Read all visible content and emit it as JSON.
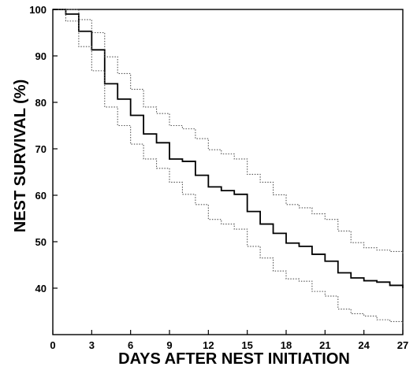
{
  "chart_data": {
    "type": "line",
    "title": "",
    "xlabel": "DAYS AFTER NEST INITIATION",
    "ylabel": "NEST SURVIVAL (%)",
    "xlim": [
      0,
      27
    ],
    "ylim": [
      30,
      100
    ],
    "x_ticks": [
      0,
      3,
      6,
      9,
      12,
      15,
      18,
      21,
      24,
      27
    ],
    "y_ticks": [
      40,
      50,
      60,
      70,
      80,
      90,
      100
    ],
    "grid": false,
    "legend": "none",
    "step": true,
    "x": [
      0,
      1,
      2,
      3,
      4,
      5,
      6,
      7,
      8,
      9,
      10,
      11,
      12,
      13,
      14,
      15,
      16,
      17,
      18,
      19,
      20,
      21,
      22,
      23,
      24,
      25,
      26,
      27
    ],
    "series": [
      {
        "style": "solid",
        "color": "#000000",
        "values": [
          100,
          99,
          95.3,
          91.3,
          84,
          80.7,
          77.2,
          73.2,
          71.3,
          67.8,
          67.3,
          64.3,
          61.8,
          61,
          60.2,
          56.5,
          53.8,
          51.8,
          49.7,
          49,
          47.3,
          45.8,
          43.3,
          42.2,
          41.6,
          41.3,
          40.6,
          40
        ]
      },
      {
        "style": "dotted",
        "color": "#555555",
        "values": [
          100,
          100,
          97.8,
          95,
          89.8,
          86.2,
          82.8,
          79,
          77.6,
          75,
          74.3,
          72.2,
          69.8,
          68.9,
          67.8,
          64.5,
          62.8,
          60.1,
          58,
          57.3,
          56,
          54.8,
          52.3,
          49.8,
          48.7,
          48.2,
          47.9,
          47.5
        ]
      },
      {
        "style": "dotted",
        "color": "#555555",
        "values": [
          100,
          97.5,
          92,
          86.8,
          79,
          75,
          71,
          67.8,
          65.8,
          62.8,
          60.2,
          58,
          54.8,
          53.8,
          52.7,
          49,
          46.5,
          43.7,
          42,
          41.5,
          39.3,
          38.3,
          35.5,
          34.5,
          34,
          33.2,
          32.8,
          32.5
        ]
      }
    ]
  }
}
